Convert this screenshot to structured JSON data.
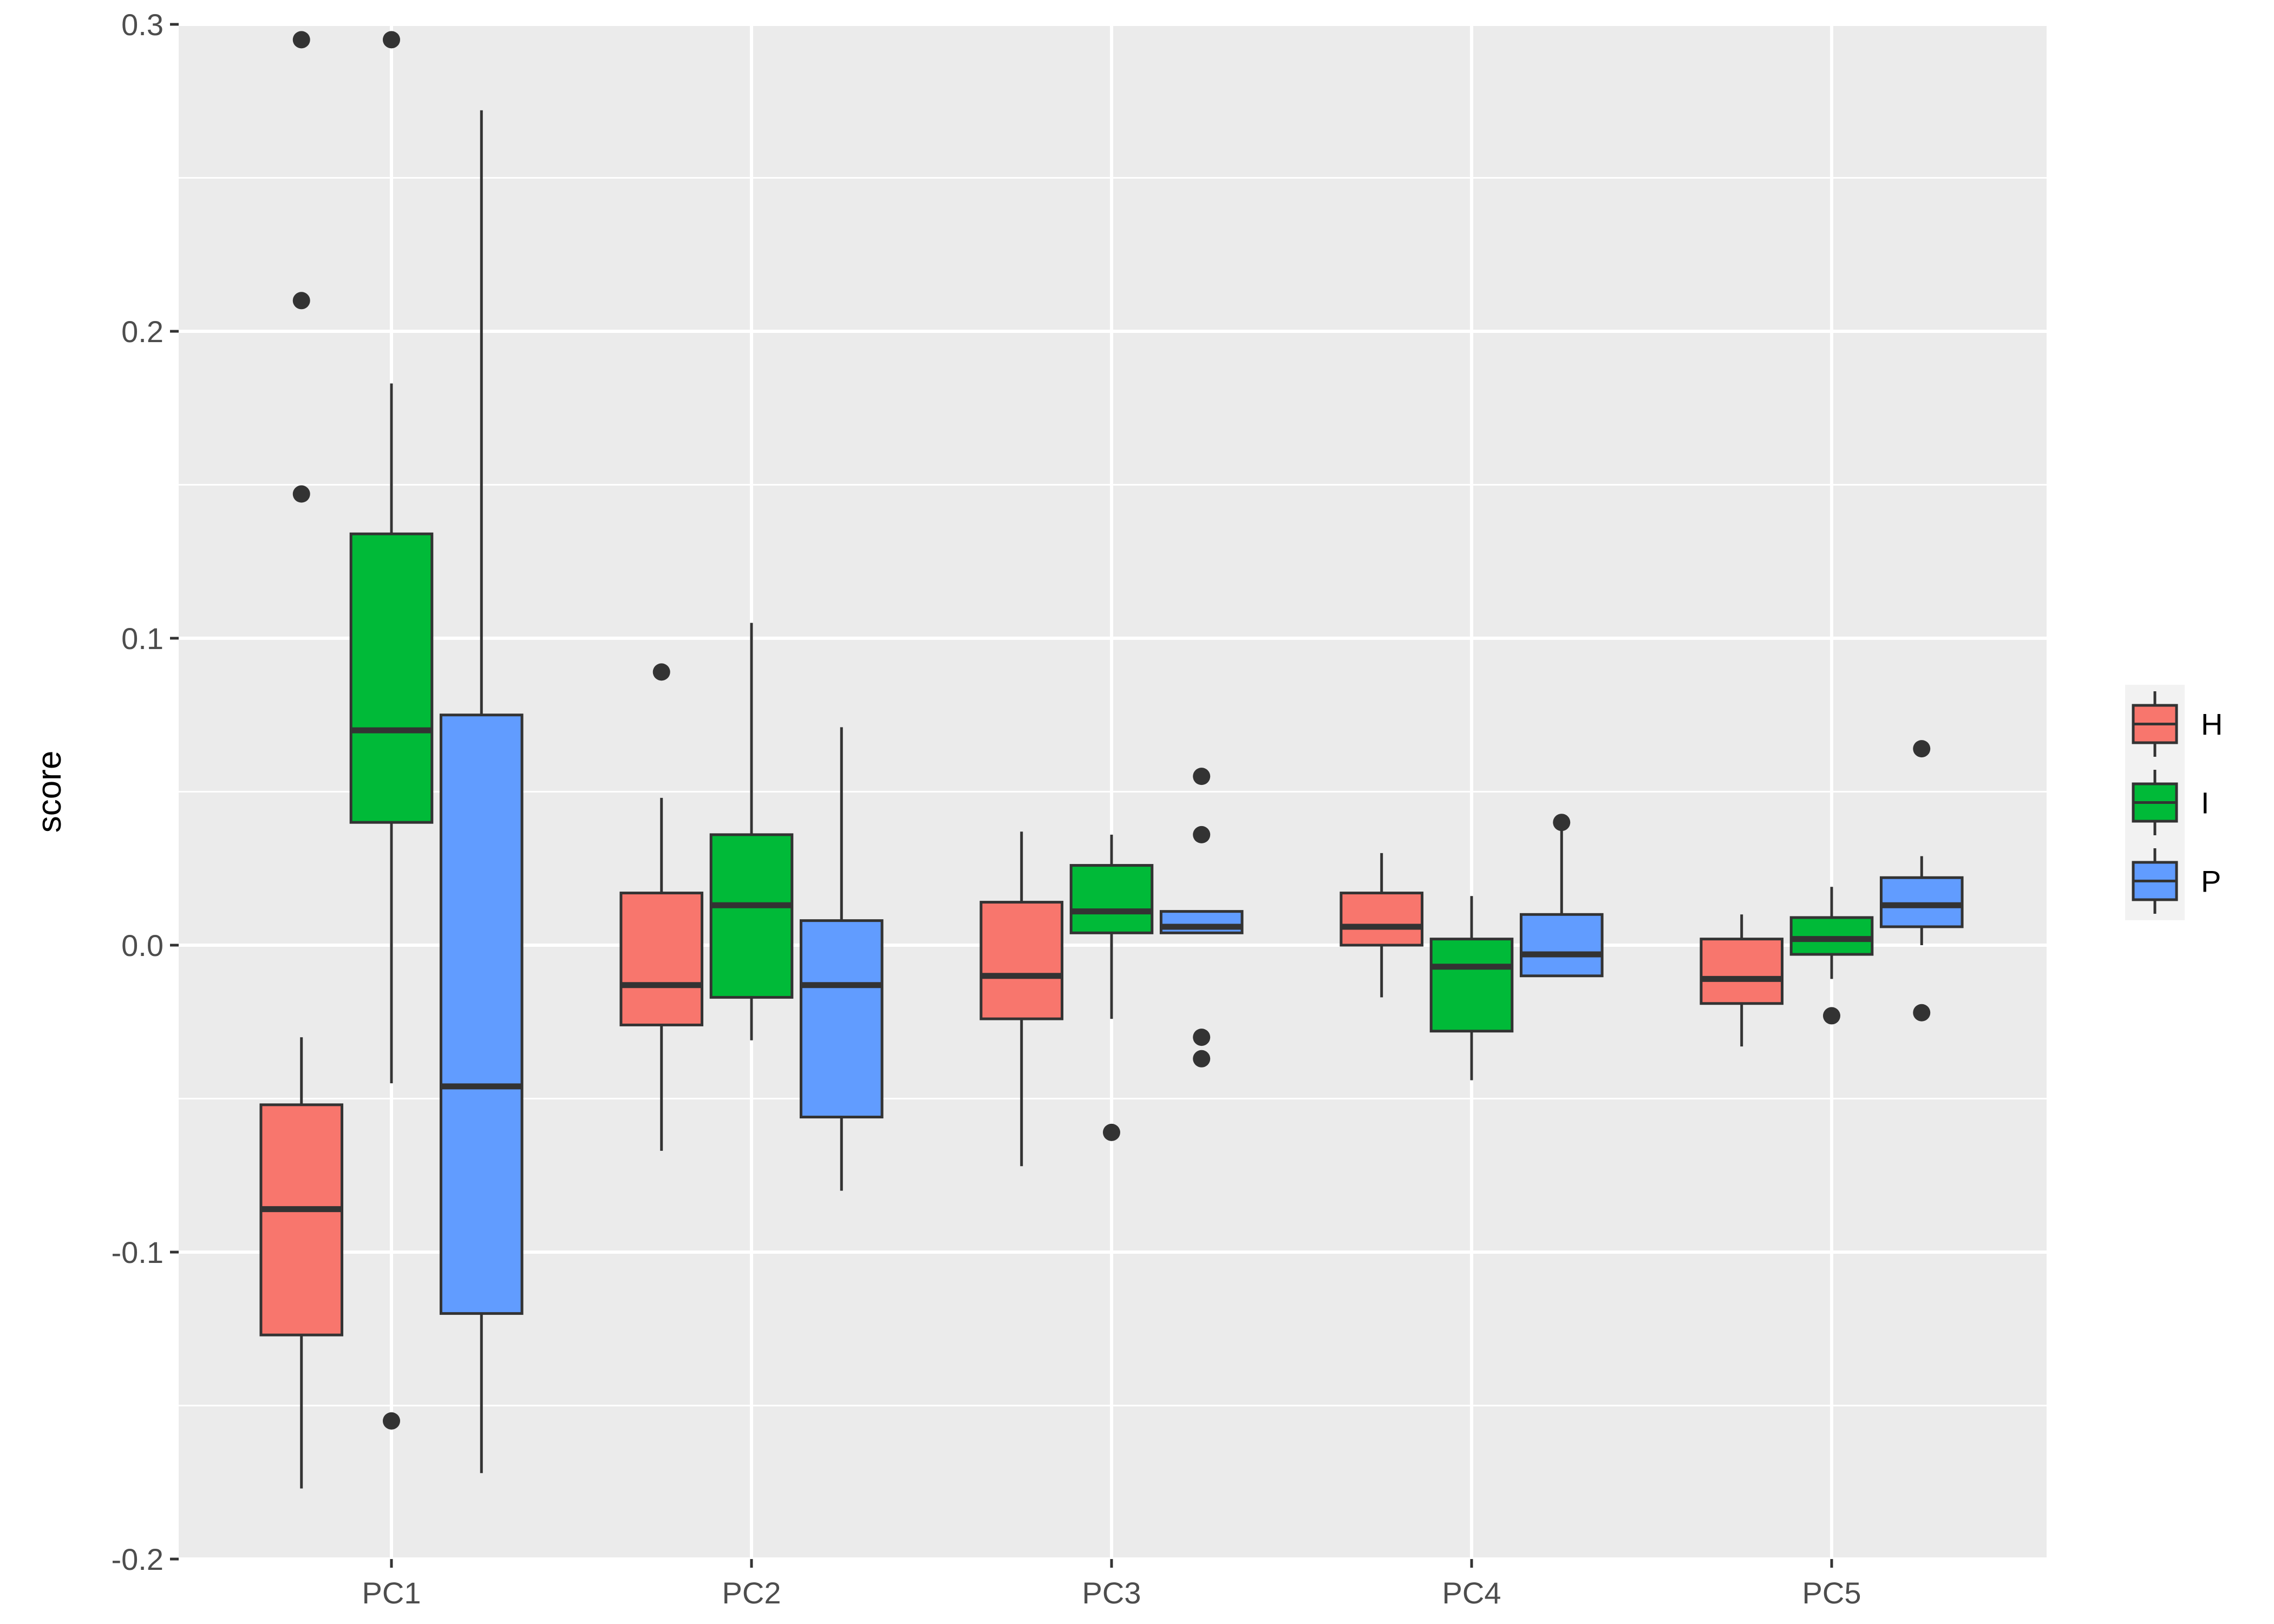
{
  "chart_data": {
    "type": "boxplot",
    "ylabel": "score",
    "xlabel": "",
    "ylim": [
      -0.2,
      0.3
    ],
    "yticks": [
      -0.2,
      -0.1,
      0.0,
      0.1,
      0.2,
      0.3
    ],
    "ytick_labels": [
      "-0.2",
      "-0.1",
      "0.0",
      "0.1",
      "0.2",
      "0.3"
    ],
    "categories": [
      "PC1",
      "PC2",
      "PC3",
      "PC4",
      "PC5"
    ],
    "grid": true,
    "legend_position": "right",
    "series": [
      {
        "name": "H",
        "color": "#F8766D",
        "boxes": [
          {
            "whisker_low": -0.177,
            "q1": -0.127,
            "median": -0.086,
            "q3": -0.052,
            "whisker_high": -0.03,
            "outliers": [
              0.295,
              0.21,
              0.147
            ]
          },
          {
            "whisker_low": -0.067,
            "q1": -0.026,
            "median": -0.013,
            "q3": 0.017,
            "whisker_high": 0.048,
            "outliers": [
              0.089
            ]
          },
          {
            "whisker_low": -0.072,
            "q1": -0.024,
            "median": -0.01,
            "q3": 0.014,
            "whisker_high": 0.037,
            "outliers": []
          },
          {
            "whisker_low": -0.017,
            "q1": 0.0,
            "median": 0.006,
            "q3": 0.017,
            "whisker_high": 0.03,
            "outliers": []
          },
          {
            "whisker_low": -0.033,
            "q1": -0.019,
            "median": -0.011,
            "q3": 0.002,
            "whisker_high": 0.01,
            "outliers": []
          }
        ]
      },
      {
        "name": "I",
        "color": "#00BA38",
        "boxes": [
          {
            "whisker_low": -0.045,
            "q1": 0.04,
            "median": 0.07,
            "q3": 0.134,
            "whisker_high": 0.183,
            "outliers": [
              0.295,
              -0.155
            ]
          },
          {
            "whisker_low": -0.031,
            "q1": -0.017,
            "median": 0.013,
            "q3": 0.036,
            "whisker_high": 0.105,
            "outliers": []
          },
          {
            "whisker_low": -0.024,
            "q1": 0.004,
            "median": 0.011,
            "q3": 0.026,
            "whisker_high": 0.036,
            "outliers": [
              -0.061
            ]
          },
          {
            "whisker_low": -0.044,
            "q1": -0.028,
            "median": -0.007,
            "q3": 0.002,
            "whisker_high": 0.016,
            "outliers": []
          },
          {
            "whisker_low": -0.011,
            "q1": -0.003,
            "median": 0.002,
            "q3": 0.009,
            "whisker_high": 0.019,
            "outliers": [
              -0.023
            ]
          }
        ]
      },
      {
        "name": "P",
        "color": "#619CFF",
        "boxes": [
          {
            "whisker_low": -0.172,
            "q1": -0.12,
            "median": -0.046,
            "q3": 0.075,
            "whisker_high": 0.272,
            "outliers": []
          },
          {
            "whisker_low": -0.08,
            "q1": -0.056,
            "median": -0.013,
            "q3": 0.008,
            "whisker_high": 0.071,
            "outliers": []
          },
          {
            "whisker_low": 0.004,
            "q1": 0.004,
            "median": 0.006,
            "q3": 0.011,
            "whisker_high": 0.011,
            "outliers": [
              0.055,
              0.036,
              -0.03,
              -0.037
            ]
          },
          {
            "whisker_low": -0.01,
            "q1": -0.01,
            "median": -0.003,
            "q3": 0.01,
            "whisker_high": 0.04,
            "outliers": [
              0.04
            ]
          },
          {
            "whisker_low": 0.0,
            "q1": 0.006,
            "median": 0.013,
            "q3": 0.022,
            "whisker_high": 0.029,
            "outliers": [
              0.064,
              -0.022
            ]
          }
        ]
      }
    ]
  }
}
